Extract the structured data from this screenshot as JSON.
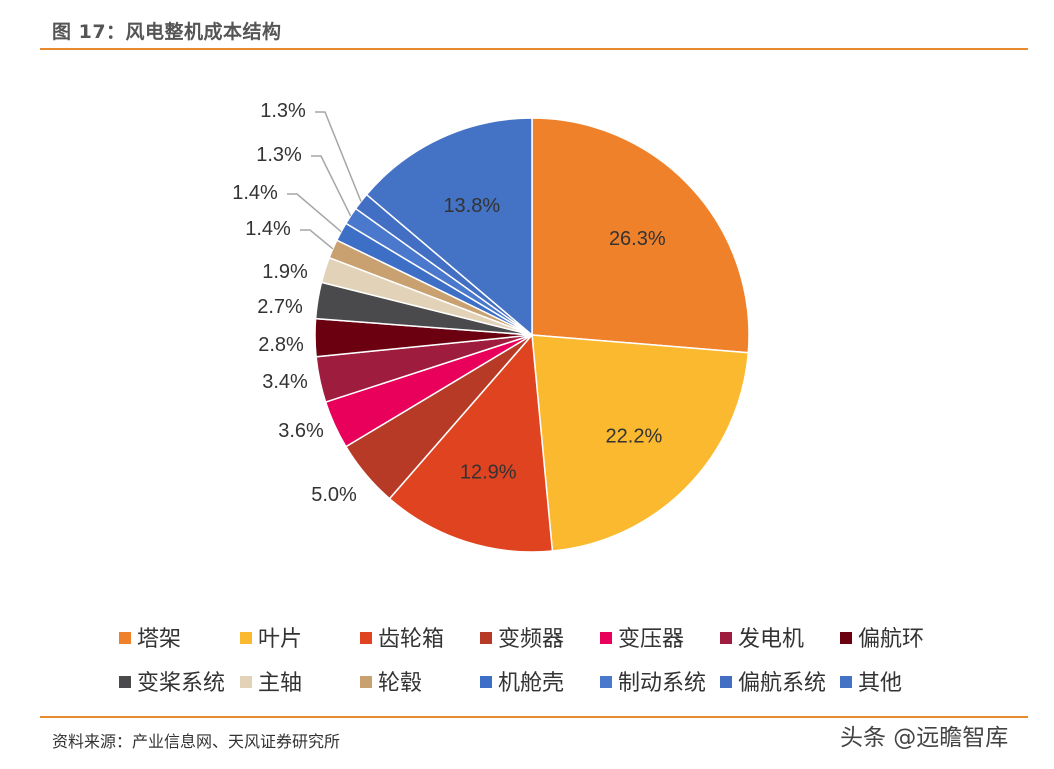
{
  "page": {
    "title": "图 17：风电整机成本结构",
    "source": "资料来源：产业信息网、天风证券研究所",
    "watermark": "头条 @远瞻智库"
  },
  "chart_data": {
    "type": "pie",
    "title": "",
    "start_angle_deg": 0,
    "direction": "clockwise",
    "slices": [
      {
        "name": "塔架",
        "value": 26.3,
        "label": "26.3%",
        "color": "#f0812b"
      },
      {
        "name": "叶片",
        "value": 22.2,
        "label": "22.2%",
        "color": "#fbb92f"
      },
      {
        "name": "齿轮箱",
        "value": 12.9,
        "label": "12.9%",
        "color": "#df4320"
      },
      {
        "name": "变频器",
        "value": 5.0,
        "label": "5.0%",
        "color": "#b73a27"
      },
      {
        "name": "变压器",
        "value": 3.6,
        "label": "3.6%",
        "color": "#e8005a"
      },
      {
        "name": "发电机",
        "value": 3.4,
        "label": "3.4%",
        "color": "#9e1c3e"
      },
      {
        "name": "偏航环",
        "value": 2.8,
        "label": "2.8%",
        "color": "#6b0010"
      },
      {
        "name": "变桨系统",
        "value": 2.7,
        "label": "2.7%",
        "color": "#4a4a4c"
      },
      {
        "name": "主轴",
        "value": 1.9,
        "label": "1.9%",
        "color": "#e2d3b8"
      },
      {
        "name": "轮毂",
        "value": 1.4,
        "label": "1.4%",
        "color": "#c9a070"
      },
      {
        "name": "机舱壳",
        "value": 1.4,
        "label": "1.4%",
        "color": "#3e6fc6"
      },
      {
        "name": "制动系统",
        "value": 1.3,
        "label": "1.3%",
        "color": "#4a78cc"
      },
      {
        "name": "偏航系统",
        "value": 1.3,
        "label": "1.3%",
        "color": "#426fc4"
      },
      {
        "name": "其他",
        "value": 13.8,
        "label": "13.8%",
        "color": "#4472c4"
      }
    ],
    "legend_position": "bottom"
  }
}
